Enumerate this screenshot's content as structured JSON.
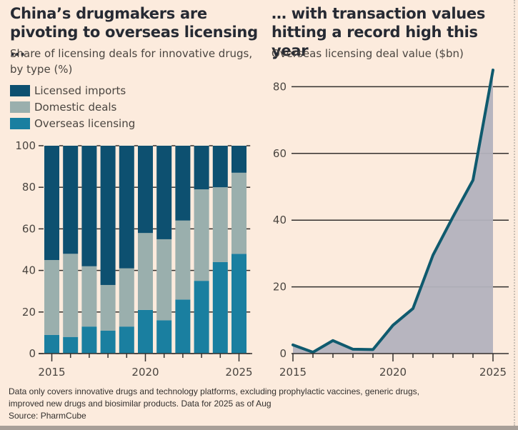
{
  "colors": {
    "background": "#fcebdd",
    "licensed_imports": "#0d5070",
    "domestic_deals": "#9aafad",
    "overseas_licensing": "#1a7fa0",
    "line": "#0f5a6e",
    "area": "#b3b2bd",
    "axis": "#33302e"
  },
  "footnote": {
    "line1": "Data only covers innovative drugs and technology platforms, excluding prophylactic vaccines, generic drugs,",
    "line2": "improved new drugs and biosimilar products. Data for 2025 as of Aug",
    "source": "Source: PharmCube"
  },
  "chart_data": [
    {
      "type": "bar",
      "stacked": true,
      "title": "China’s drugmakers are pivoting to overseas licensing …",
      "subtitle": "Share of licensing deals for innovative drugs, by type (%)",
      "xlabel": "",
      "ylabel": "",
      "ylim": [
        0,
        100
      ],
      "yticks": [
        0,
        20,
        40,
        60,
        80,
        100
      ],
      "xtick_labels": [
        "2015",
        "2020",
        "2025"
      ],
      "categories": [
        "2015",
        "2016",
        "2017",
        "2018",
        "2019",
        "2020",
        "2021",
        "2022",
        "2023",
        "2024",
        "2025"
      ],
      "legend_position": "top-left",
      "series": [
        {
          "name": "Overseas licensing",
          "values": [
            9,
            8,
            13,
            11,
            13,
            21,
            16,
            26,
            35,
            44,
            48
          ]
        },
        {
          "name": "Domestic deals",
          "values": [
            36,
            40,
            29,
            22,
            28,
            37,
            39,
            38,
            44,
            36,
            39
          ]
        },
        {
          "name": "Licensed imports",
          "values": [
            55,
            52,
            58,
            67,
            59,
            42,
            45,
            36,
            21,
            20,
            13
          ]
        }
      ],
      "legend": [
        "Licensed imports",
        "Domestic deals",
        "Overseas licensing"
      ]
    },
    {
      "type": "area",
      "title": "… with transaction values hitting a record high this year",
      "subtitle": "Overseas licensing deal value ($bn)",
      "xlabel": "",
      "ylabel": "",
      "ylim": [
        0,
        85
      ],
      "yticks": [
        0,
        20,
        40,
        60,
        80
      ],
      "xtick_labels": [
        "2015",
        "2020",
        "2025"
      ],
      "grid": true,
      "x": [
        2015,
        2016,
        2017,
        2018,
        2019,
        2020,
        2021,
        2022,
        2023,
        2024,
        2025
      ],
      "values": [
        2.6,
        0.4,
        3.9,
        1.3,
        1.2,
        8.5,
        13.5,
        29.5,
        41,
        52,
        85
      ]
    }
  ]
}
